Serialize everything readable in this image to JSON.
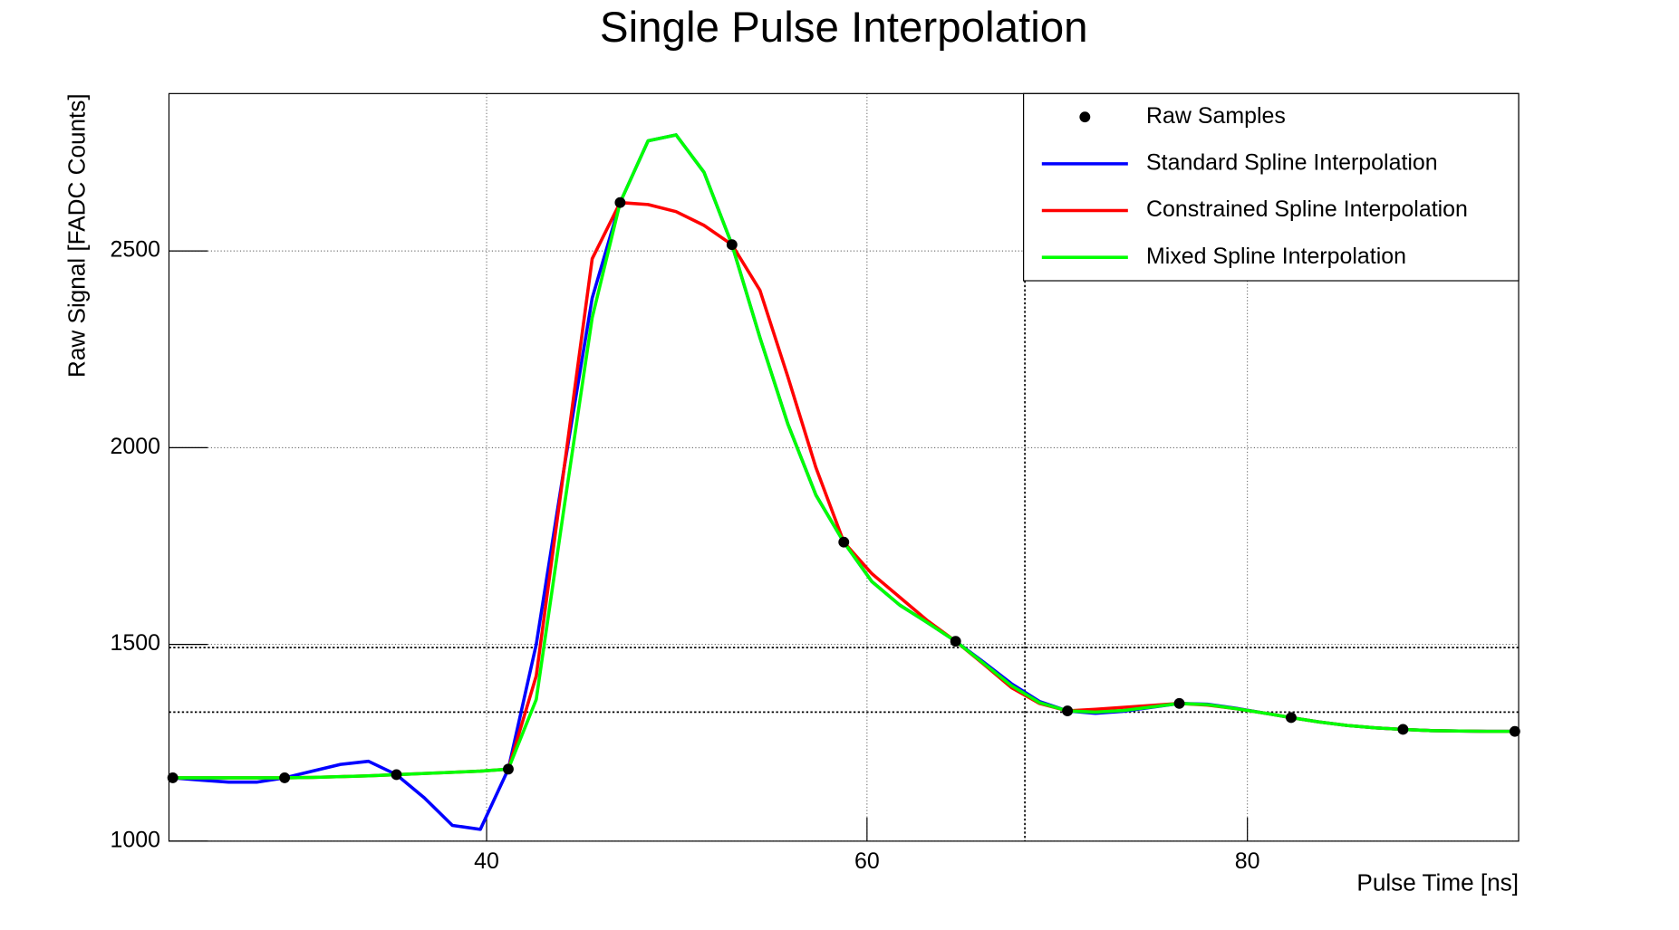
{
  "chart_data": {
    "type": "line",
    "title": "Single Pulse Interpolation",
    "x_label": "Pulse Time [ns]",
    "y_label": "Raw Signal [FADC Counts]",
    "xlim": [
      23.3,
      94.26
    ],
    "ylim": [
      1000,
      2900
    ],
    "xticks": [
      40,
      60,
      80
    ],
    "yticks": [
      1000,
      1500,
      2000,
      2500
    ],
    "grid": true,
    "legend": "upper right",
    "reference_lines": {
      "y": [
        1492,
        1328
      ],
      "x": [
        68.3
      ]
    },
    "series": [
      {
        "name": "Raw Samples",
        "color": "#000000",
        "marker": "circle",
        "x": [
          23.5,
          29.38,
          35.26,
          41.14,
          47.02,
          52.9,
          58.78,
          64.66,
          70.54,
          76.42,
          82.3,
          88.18,
          94.06
        ],
        "values": [
          1161,
          1161,
          1169,
          1183,
          2623,
          2516,
          1760,
          1508,
          1331,
          1350,
          1314,
          1284,
          1279
        ]
      },
      {
        "name": "Standard Spline Interpolation",
        "color": "#0000ff",
        "x": [
          23.5,
          24.97,
          26.44,
          27.91,
          29.38,
          30.85,
          32.32,
          33.79,
          35.26,
          36.73,
          38.2,
          39.67,
          41.14,
          42.61,
          44.08,
          45.55,
          47.02,
          48.49,
          49.96,
          51.43,
          52.9,
          54.37,
          55.84,
          57.31,
          58.78,
          60.25,
          61.72,
          63.19,
          64.66,
          66.13,
          67.6,
          69.07,
          70.54,
          72.01,
          73.48,
          74.95,
          76.42,
          77.89,
          79.36,
          80.83,
          82.3,
          83.77,
          85.24,
          86.71,
          88.18,
          89.65,
          91.12,
          92.59,
          94.06
        ],
        "values": [
          1161,
          1155,
          1150,
          1150,
          1161,
          1178,
          1195,
          1203,
          1169,
          1110,
          1040,
          1030,
          1183,
          1500,
          1950,
          2380,
          2623,
          2780,
          2795,
          2700,
          2516,
          2280,
          2060,
          1880,
          1760,
          1660,
          1600,
          1555,
          1508,
          1455,
          1400,
          1355,
          1331,
          1325,
          1330,
          1340,
          1350,
          1348,
          1338,
          1326,
          1314,
          1303,
          1294,
          1288,
          1284,
          1281,
          1280,
          1279,
          1279
        ]
      },
      {
        "name": "Constrained Spline Interpolation",
        "color": "#ff0000",
        "x": [
          23.5,
          24.97,
          26.44,
          27.91,
          29.38,
          30.85,
          32.32,
          33.79,
          35.26,
          36.73,
          38.2,
          39.67,
          41.14,
          42.61,
          44.08,
          45.55,
          47.02,
          48.49,
          49.96,
          51.43,
          52.9,
          54.37,
          55.84,
          57.31,
          58.78,
          60.25,
          61.72,
          63.19,
          64.66,
          66.13,
          67.6,
          69.07,
          70.54,
          72.01,
          73.48,
          74.95,
          76.42,
          77.89,
          79.36,
          80.83,
          82.3,
          83.77,
          85.24,
          86.71,
          88.18,
          89.65,
          91.12,
          92.59,
          94.06
        ],
        "values": [
          1161,
          1161,
          1161,
          1161,
          1161,
          1162,
          1164,
          1166,
          1169,
          1172,
          1175,
          1178,
          1183,
          1420,
          1950,
          2480,
          2623,
          2618,
          2600,
          2565,
          2516,
          2400,
          2180,
          1950,
          1760,
          1680,
          1620,
          1560,
          1508,
          1450,
          1390,
          1350,
          1331,
          1335,
          1340,
          1345,
          1350,
          1346,
          1337,
          1326,
          1314,
          1303,
          1294,
          1288,
          1284,
          1281,
          1280,
          1279,
          1279
        ]
      },
      {
        "name": "Mixed Spline Interpolation",
        "color": "#00ff00",
        "x": [
          23.5,
          24.97,
          26.44,
          27.91,
          29.38,
          30.85,
          32.32,
          33.79,
          35.26,
          36.73,
          38.2,
          39.67,
          41.14,
          42.61,
          44.08,
          45.55,
          47.02,
          48.49,
          49.96,
          51.43,
          52.9,
          54.37,
          55.84,
          57.31,
          58.78,
          60.25,
          61.72,
          63.19,
          64.66,
          66.13,
          67.6,
          69.07,
          70.54,
          72.01,
          73.48,
          74.95,
          76.42,
          77.89,
          79.36,
          80.83,
          82.3,
          83.77,
          85.24,
          86.71,
          88.18,
          89.65,
          91.12,
          92.59,
          94.06
        ],
        "values": [
          1161,
          1161,
          1161,
          1161,
          1161,
          1162,
          1164,
          1166,
          1169,
          1172,
          1175,
          1178,
          1183,
          1360,
          1850,
          2330,
          2623,
          2780,
          2795,
          2700,
          2516,
          2280,
          2060,
          1880,
          1760,
          1660,
          1600,
          1555,
          1508,
          1452,
          1395,
          1352,
          1331,
          1328,
          1332,
          1341,
          1350,
          1347,
          1337,
          1326,
          1314,
          1303,
          1294,
          1288,
          1284,
          1281,
          1280,
          1279,
          1279
        ]
      }
    ]
  }
}
